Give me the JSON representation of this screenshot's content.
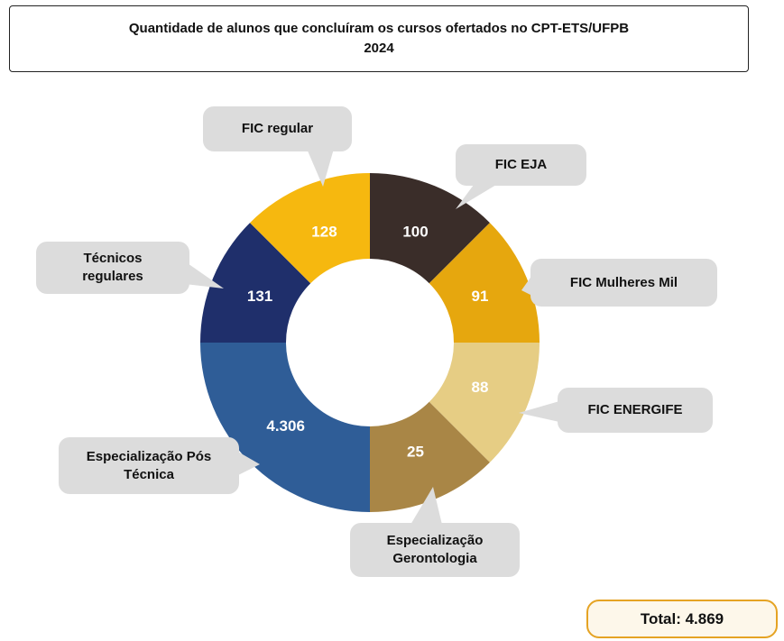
{
  "chart_data": {
    "type": "donut",
    "title": "Quantidade de alunos que concluíram os cursos ofertados no CPT-ETS/UFPB",
    "subtitle": "2024",
    "categories": [
      "FIC EJA",
      "FIC Mulheres Mil",
      "FIC ENERGIFE",
      "Especialização Gerontologia",
      "Especialização Pós Técnica",
      "Técnicos regulares",
      "FIC regular"
    ],
    "values": [
      100,
      91,
      88,
      25,
      4306,
      131,
      128
    ],
    "value_labels": [
      "100",
      "91",
      "88",
      "25",
      "4.306",
      "131",
      "128"
    ],
    "colors": [
      "#3a2d29",
      "#e6a70e",
      "#e6cd84",
      "#a98646",
      "#2f5d97",
      "#1f2f6b",
      "#f6b80f"
    ],
    "total": "Total: 4.869"
  }
}
